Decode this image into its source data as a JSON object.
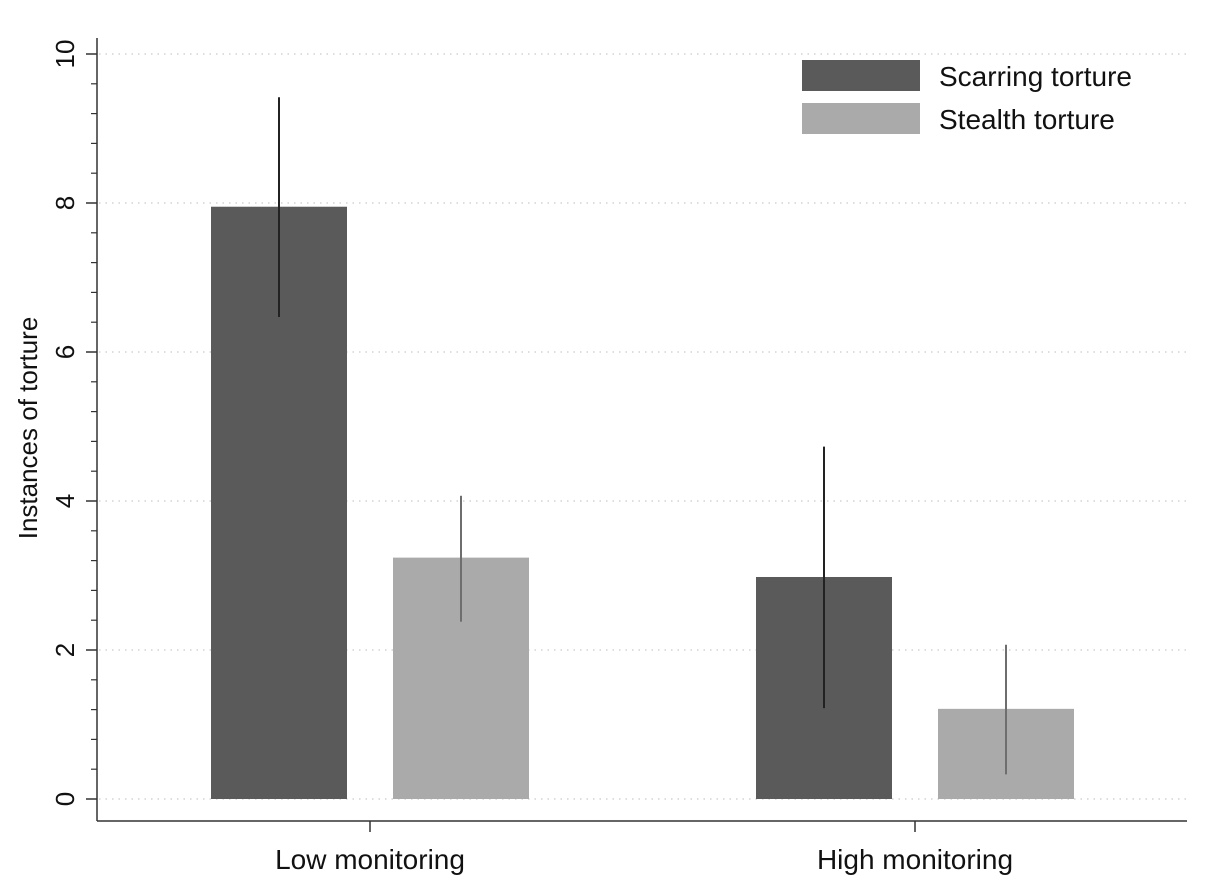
{
  "chart_data": {
    "type": "bar",
    "title": "",
    "xlabel": "",
    "ylabel": "Instances of torture",
    "ylim": [
      0,
      10
    ],
    "yticks": [
      0,
      2,
      4,
      6,
      8,
      10
    ],
    "yticks_minor_step": 0.4,
    "grid": "horizontal dotted",
    "legend_position": "top-right",
    "categories": [
      "Low monitoring",
      "High monitoring"
    ],
    "series": [
      {
        "name": "Scarring torture",
        "color": "#5a5a5a",
        "values": [
          7.95,
          2.98
        ],
        "error_low": [
          6.47,
          1.22
        ],
        "error_high": [
          9.42,
          4.73
        ]
      },
      {
        "name": "Stealth torture",
        "color": "#aaaaaa",
        "values": [
          3.24,
          1.21
        ],
        "error_low": [
          2.38,
          0.33
        ],
        "error_high": [
          4.07,
          2.07
        ]
      }
    ]
  }
}
